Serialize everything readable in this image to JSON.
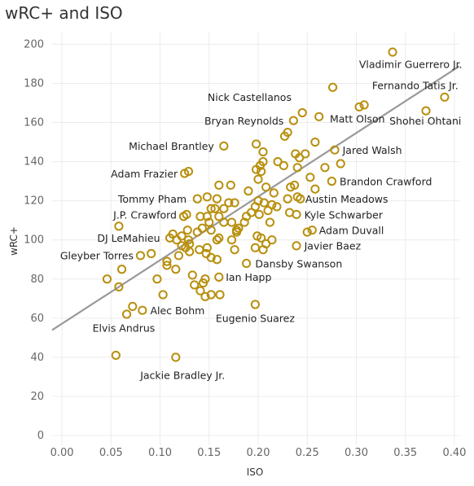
{
  "chart_data": {
    "type": "scatter",
    "title": "wRC+ and ISO",
    "xlabel": "ISO",
    "ylabel": "wRC+",
    "xlim": [
      -0.01,
      0.405
    ],
    "ylim": [
      -5,
      206
    ],
    "x_ticks": [
      "0.00",
      "0.05",
      "0.10",
      "0.15",
      "0.20",
      "0.25",
      "0.30",
      "0.35",
      "0.40"
    ],
    "x_tick_values": [
      0,
      0.05,
      0.1,
      0.15,
      0.2,
      0.25,
      0.3,
      0.35,
      0.4
    ],
    "y_ticks": [
      "0",
      "20",
      "40",
      "60",
      "80",
      "100",
      "120",
      "140",
      "160",
      "180",
      "200"
    ],
    "y_tick_values": [
      0,
      20,
      40,
      60,
      80,
      100,
      120,
      140,
      160,
      180,
      200
    ],
    "grid": true,
    "trend_line": {
      "x": [
        -0.01,
        0.405
      ],
      "y": [
        53.9,
        188.8
      ]
    },
    "colors": {
      "marker": "#b8900f",
      "trend": "#999999",
      "grid": "#ececec"
    },
    "points": [
      {
        "x": 0.337,
        "y": 196,
        "label": "Vladimir Guerrero Jr."
      },
      {
        "x": 0.39,
        "y": 173,
        "label": "Fernando Tatis Jr."
      },
      {
        "x": 0.371,
        "y": 166,
        "label": "Shohei Ohtani"
      },
      {
        "x": 0.308,
        "y": 169
      },
      {
        "x": 0.303,
        "y": 168,
        "label": "Matt Olson"
      },
      {
        "x": 0.276,
        "y": 178
      },
      {
        "x": 0.245,
        "y": 165,
        "label": "Nick Castellanos"
      },
      {
        "x": 0.262,
        "y": 163
      },
      {
        "x": 0.236,
        "y": 161,
        "label": "Bryan Reynolds"
      },
      {
        "x": 0.23,
        "y": 155
      },
      {
        "x": 0.227,
        "y": 153
      },
      {
        "x": 0.258,
        "y": 150
      },
      {
        "x": 0.278,
        "y": 146,
        "label": "Jared Walsh"
      },
      {
        "x": 0.268,
        "y": 137
      },
      {
        "x": 0.284,
        "y": 139
      },
      {
        "x": 0.275,
        "y": 130,
        "label": "Brandon Crawford"
      },
      {
        "x": 0.242,
        "y": 142
      },
      {
        "x": 0.238,
        "y": 144
      },
      {
        "x": 0.248,
        "y": 144
      },
      {
        "x": 0.253,
        "y": 132
      },
      {
        "x": 0.24,
        "y": 137
      },
      {
        "x": 0.226,
        "y": 138
      },
      {
        "x": 0.22,
        "y": 140
      },
      {
        "x": 0.237,
        "y": 128
      },
      {
        "x": 0.233,
        "y": 127
      },
      {
        "x": 0.258,
        "y": 126
      },
      {
        "x": 0.24,
        "y": 122,
        "label": "Austin Meadows"
      },
      {
        "x": 0.243,
        "y": 121
      },
      {
        "x": 0.23,
        "y": 121
      },
      {
        "x": 0.216,
        "y": 124
      },
      {
        "x": 0.232,
        "y": 114,
        "label": "Kyle Schwarber"
      },
      {
        "x": 0.239,
        "y": 113
      },
      {
        "x": 0.255,
        "y": 105,
        "label": "Adam Duvall"
      },
      {
        "x": 0.25,
        "y": 104
      },
      {
        "x": 0.239,
        "y": 97,
        "label": "Javier Baez"
      },
      {
        "x": 0.198,
        "y": 149
      },
      {
        "x": 0.202,
        "y": 138
      },
      {
        "x": 0.198,
        "y": 136
      },
      {
        "x": 0.203,
        "y": 135
      },
      {
        "x": 0.205,
        "y": 140
      },
      {
        "x": 0.205,
        "y": 145
      },
      {
        "x": 0.208,
        "y": 127
      },
      {
        "x": 0.2,
        "y": 131
      },
      {
        "x": 0.19,
        "y": 125
      },
      {
        "x": 0.2,
        "y": 120
      },
      {
        "x": 0.206,
        "y": 119
      },
      {
        "x": 0.197,
        "y": 117
      },
      {
        "x": 0.193,
        "y": 114
      },
      {
        "x": 0.201,
        "y": 113
      },
      {
        "x": 0.214,
        "y": 118
      },
      {
        "x": 0.21,
        "y": 115
      },
      {
        "x": 0.219,
        "y": 117
      },
      {
        "x": 0.212,
        "y": 109
      },
      {
        "x": 0.188,
        "y": 112
      },
      {
        "x": 0.186,
        "y": 109
      },
      {
        "x": 0.18,
        "y": 106
      },
      {
        "x": 0.178,
        "y": 104
      },
      {
        "x": 0.199,
        "y": 102
      },
      {
        "x": 0.203,
        "y": 101
      },
      {
        "x": 0.214,
        "y": 100
      },
      {
        "x": 0.208,
        "y": 98
      },
      {
        "x": 0.197,
        "y": 96
      },
      {
        "x": 0.205,
        "y": 95
      },
      {
        "x": 0.188,
        "y": 88,
        "label": "Dansby Swanson"
      },
      {
        "x": 0.172,
        "y": 128
      },
      {
        "x": 0.17,
        "y": 119
      },
      {
        "x": 0.176,
        "y": 119
      },
      {
        "x": 0.165,
        "y": 116
      },
      {
        "x": 0.173,
        "y": 109
      },
      {
        "x": 0.165,
        "y": 109
      },
      {
        "x": 0.178,
        "y": 105
      },
      {
        "x": 0.173,
        "y": 100
      },
      {
        "x": 0.176,
        "y": 95
      },
      {
        "x": 0.165,
        "y": 148,
        "label": "Michael Brantley"
      },
      {
        "x": 0.16,
        "y": 128
      },
      {
        "x": 0.148,
        "y": 122
      },
      {
        "x": 0.158,
        "y": 121
      },
      {
        "x": 0.156,
        "y": 116
      },
      {
        "x": 0.152,
        "y": 116
      },
      {
        "x": 0.16,
        "y": 112
      },
      {
        "x": 0.148,
        "y": 112
      },
      {
        "x": 0.15,
        "y": 109
      },
      {
        "x": 0.143,
        "y": 106
      },
      {
        "x": 0.152,
        "y": 105
      },
      {
        "x": 0.16,
        "y": 101
      },
      {
        "x": 0.158,
        "y": 100
      },
      {
        "x": 0.148,
        "y": 96
      },
      {
        "x": 0.14,
        "y": 95
      },
      {
        "x": 0.147,
        "y": 93
      },
      {
        "x": 0.152,
        "y": 91
      },
      {
        "x": 0.158,
        "y": 90
      },
      {
        "x": 0.125,
        "y": 134,
        "label": "Adam Frazier"
      },
      {
        "x": 0.129,
        "y": 135
      },
      {
        "x": 0.138,
        "y": 121,
        "label": "Tommy Pham"
      },
      {
        "x": 0.127,
        "y": 113,
        "label": "J.P. Crawford"
      },
      {
        "x": 0.124,
        "y": 112
      },
      {
        "x": 0.141,
        "y": 112
      },
      {
        "x": 0.128,
        "y": 105
      },
      {
        "x": 0.138,
        "y": 104
      },
      {
        "x": 0.129,
        "y": 100
      },
      {
        "x": 0.13,
        "y": 98
      },
      {
        "x": 0.122,
        "y": 97
      },
      {
        "x": 0.126,
        "y": 96
      },
      {
        "x": 0.13,
        "y": 94
      },
      {
        "x": 0.119,
        "y": 92
      },
      {
        "x": 0.11,
        "y": 101,
        "label": "DJ LeMahieu"
      },
      {
        "x": 0.113,
        "y": 103
      },
      {
        "x": 0.117,
        "y": 100
      },
      {
        "x": 0.122,
        "y": 102
      },
      {
        "x": 0.107,
        "y": 89
      },
      {
        "x": 0.107,
        "y": 87
      },
      {
        "x": 0.116,
        "y": 85
      },
      {
        "x": 0.08,
        "y": 92,
        "label": "Gleyber Torres"
      },
      {
        "x": 0.091,
        "y": 93
      },
      {
        "x": 0.061,
        "y": 85
      },
      {
        "x": 0.058,
        "y": 107
      },
      {
        "x": 0.046,
        "y": 80
      },
      {
        "x": 0.058,
        "y": 76
      },
      {
        "x": 0.097,
        "y": 80
      },
      {
        "x": 0.103,
        "y": 72
      },
      {
        "x": 0.133,
        "y": 82
      },
      {
        "x": 0.146,
        "y": 80
      },
      {
        "x": 0.144,
        "y": 78
      },
      {
        "x": 0.135,
        "y": 77
      },
      {
        "x": 0.141,
        "y": 74
      },
      {
        "x": 0.146,
        "y": 71
      },
      {
        "x": 0.152,
        "y": 72
      },
      {
        "x": 0.161,
        "y": 72
      },
      {
        "x": 0.16,
        "y": 81,
        "label": "Ian Happ"
      },
      {
        "x": 0.072,
        "y": 66
      },
      {
        "x": 0.082,
        "y": 64,
        "label": "Alec Bohm"
      },
      {
        "x": 0.066,
        "y": 62,
        "label": "Elvis Andrus"
      },
      {
        "x": 0.197,
        "y": 67,
        "label": "Eugenio Suarez"
      },
      {
        "x": 0.055,
        "y": 41
      },
      {
        "x": 0.116,
        "y": 40,
        "label": "Jackie Bradley Jr."
      }
    ],
    "labels": [
      {
        "text": "Vladimir Guerrero Jr.",
        "x": 0.408,
        "y": 188,
        "anchor": "end"
      },
      {
        "text": "Fernando Tatis Jr.",
        "x": 0.404,
        "y": 177,
        "anchor": "end"
      },
      {
        "text": "Nick Castellanos",
        "x": 0.234,
        "y": 171,
        "anchor": "end"
      },
      {
        "text": "Matt Olson",
        "x": 0.273,
        "y": 160,
        "anchor": "start"
      },
      {
        "text": "Shohei Ohtani",
        "x": 0.407,
        "y": 159,
        "anchor": "end"
      },
      {
        "text": "Bryan Reynolds",
        "x": 0.226,
        "y": 159,
        "anchor": "end"
      },
      {
        "text": "Michael Brantley",
        "x": 0.155,
        "y": 146,
        "anchor": "end"
      },
      {
        "text": "Jared Walsh",
        "x": 0.286,
        "y": 144,
        "anchor": "start"
      },
      {
        "text": "Adam Frazier",
        "x": 0.118,
        "y": 132,
        "anchor": "end"
      },
      {
        "text": "Brandon Crawford",
        "x": 0.283,
        "y": 128,
        "anchor": "start"
      },
      {
        "text": "Tommy Pham",
        "x": 0.127,
        "y": 119,
        "anchor": "end"
      },
      {
        "text": "Austin Meadows",
        "x": 0.248,
        "y": 119,
        "anchor": "start"
      },
      {
        "text": "J.P. Crawford",
        "x": 0.117,
        "y": 111,
        "anchor": "end"
      },
      {
        "text": "Kyle Schwarber",
        "x": 0.247,
        "y": 111,
        "anchor": "start"
      },
      {
        "text": "Adam Duvall",
        "x": 0.262,
        "y": 103,
        "anchor": "start"
      },
      {
        "text": "DJ LeMahieu",
        "x": 0.1,
        "y": 99,
        "anchor": "end"
      },
      {
        "text": "Javier Baez",
        "x": 0.247,
        "y": 95,
        "anchor": "start"
      },
      {
        "text": "Gleyber Torres",
        "x": 0.073,
        "y": 90,
        "anchor": "end"
      },
      {
        "text": "Dansby Swanson",
        "x": 0.197,
        "y": 86,
        "anchor": "start"
      },
      {
        "text": "Ian Happ",
        "x": 0.167,
        "y": 79,
        "anchor": "start"
      },
      {
        "text": "Alec Bohm",
        "x": 0.09,
        "y": 62,
        "anchor": "start"
      },
      {
        "text": "Eugenio Suarez",
        "x": 0.197,
        "y": 58,
        "anchor": "middle"
      },
      {
        "text": "Elvis Andrus",
        "x": 0.063,
        "y": 53,
        "anchor": "middle"
      },
      {
        "text": "Jackie Bradley Jr.",
        "x": 0.123,
        "y": 29,
        "anchor": "middle"
      }
    ]
  }
}
